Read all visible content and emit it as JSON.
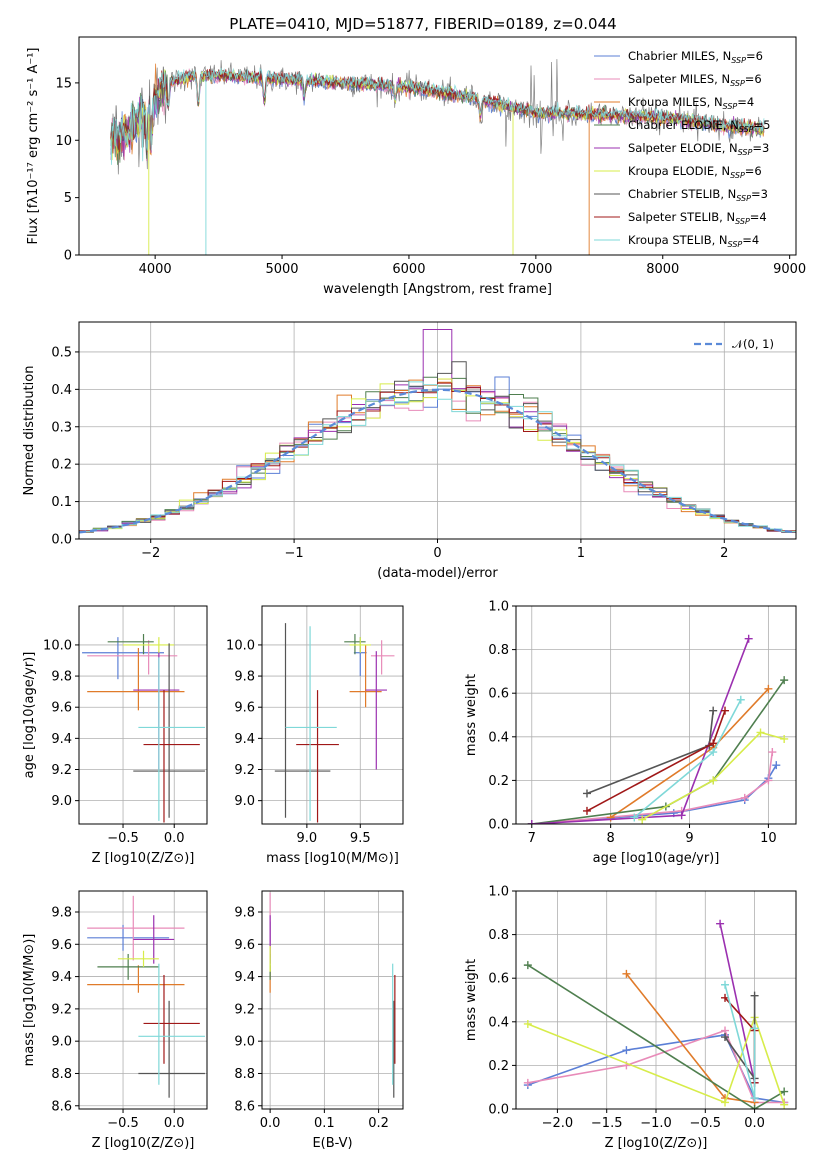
{
  "title": "PLATE=0410, MJD=51877, FIBERID=0189, z=0.044",
  "colors": {
    "Chabrier MILES": "#5b7fd6",
    "Salpeter MILES": "#e88bb9",
    "Kroupa MILES": "#e07b2a",
    "Chabrier ELODIE": "#4f7f4f",
    "Salpeter ELODIE": "#9b30b0",
    "Kroupa ELODIE": "#d7ec4a",
    "Chabrier STELIB": "#555555",
    "Salpeter STELIB": "#a01818",
    "Kroupa STELIB": "#7fd8d8",
    "data": "#808080",
    "normal": "#5b8ad8",
    "grid": "#b0b0b0"
  },
  "chart_data": [
    {
      "id": "spectrum",
      "type": "line",
      "xlabel": "wavelength [Angstrom, rest frame]",
      "ylabel": "Flux [f$_\\lambda$10$^{-17}$ erg cm$^{-2}$ s$^{-1}$ A$^{-1}$]",
      "ylabel_display": "Flux [fλ10⁻¹⁷ erg cm⁻² s⁻¹ A⁻¹]",
      "xlim": [
        3400,
        9050
      ],
      "ylim": [
        0,
        19
      ],
      "xticks": [
        4000,
        5000,
        6000,
        7000,
        8000,
        9000
      ],
      "yticks": [
        0,
        5,
        10,
        15
      ],
      "grid": false,
      "legend": "top-right",
      "legend_entries": [
        {
          "label": "Chabrier MILES, N",
          "sub": "SSP",
          "n": "=6"
        },
        {
          "label": "Salpeter MILES, N",
          "sub": "SSP",
          "n": "=6"
        },
        {
          "label": "Kroupa MILES, N",
          "sub": "SSP",
          "n": "=4"
        },
        {
          "label": "Chabrier ELODIE, N",
          "sub": "SSP",
          "n": "=5"
        },
        {
          "label": "Salpeter ELODIE, N",
          "sub": "SSP",
          "n": "=3"
        },
        {
          "label": "Kroupa ELODIE, N",
          "sub": "SSP",
          "n": "=6"
        },
        {
          "label": "Chabrier STELIB, N",
          "sub": "SSP",
          "n": "=3"
        },
        {
          "label": "Salpeter STELIB, N",
          "sub": "SSP",
          "n": "=4"
        },
        {
          "label": "Kroupa STELIB, N",
          "sub": "SSP",
          "n": "=4"
        }
      ],
      "continuum": [
        [
          3650,
          10.0
        ],
        [
          3800,
          10.8
        ],
        [
          3950,
          13.0
        ],
        [
          4100,
          15.0
        ],
        [
          4300,
          15.6
        ],
        [
          4600,
          15.6
        ],
        [
          5000,
          15.3
        ],
        [
          5500,
          15.0
        ],
        [
          6000,
          14.6
        ],
        [
          6500,
          13.7
        ],
        [
          7000,
          12.4
        ],
        [
          7500,
          12.2
        ],
        [
          8000,
          12.0
        ],
        [
          8500,
          11.2
        ],
        [
          8800,
          11.0
        ]
      ]
    },
    {
      "id": "residuals",
      "type": "histogram",
      "xlabel": "(data-model)/error",
      "ylabel": "Normed distribution",
      "xlim": [
        -2.5,
        2.5
      ],
      "ylim": [
        0,
        0.58
      ],
      "xticks": [
        -2,
        -1,
        0,
        1,
        2
      ],
      "yticks": [
        0.0,
        0.1,
        0.2,
        0.3,
        0.4,
        0.5
      ],
      "grid": true,
      "legend": "top-right",
      "legend_label": "𝒩(0, 1)",
      "bin_width": 0.1
    },
    {
      "id": "age-vs-Z",
      "type": "errorbar",
      "xlabel": "Z [log10(Z/Z⊙)]",
      "ylabel": "age  [log10(age/yr)]",
      "xlim": [
        -0.93,
        0.32
      ],
      "ylim": [
        8.85,
        10.25
      ],
      "xticks": [
        -0.5,
        0.0
      ],
      "yticks": [
        9.0,
        9.2,
        9.4,
        9.6,
        9.8,
        10.0
      ],
      "grid": true,
      "points": [
        {
          "model": "Chabrier MILES",
          "x": -0.55,
          "xerr": [
            0.35,
            0.45
          ],
          "y": 9.95,
          "yerr": [
            0.17,
            0.1
          ]
        },
        {
          "model": "Salpeter MILES",
          "x": -0.25,
          "xerr": [
            0.6,
            0.28
          ],
          "y": 9.93,
          "yerr": [
            0.12,
            0.1
          ]
        },
        {
          "model": "Kroupa MILES",
          "x": -0.35,
          "xerr": [
            0.5,
            0.45
          ],
          "y": 9.7,
          "yerr": [
            0.12,
            0.28
          ]
        },
        {
          "model": "Chabrier ELODIE",
          "x": -0.3,
          "xerr": [
            0.35,
            0.1
          ],
          "y": 10.02,
          "yerr": [
            0.08,
            0.05
          ]
        },
        {
          "model": "Salpeter ELODIE",
          "x": -0.15,
          "xerr": [
            0.25,
            0.2
          ],
          "y": 9.71,
          "yerr": [
            0.51,
            0.25
          ]
        },
        {
          "model": "Kroupa ELODIE",
          "x": -0.15,
          "xerr": [
            0.35,
            0.15
          ],
          "y": 10.0,
          "yerr": [
            0.05,
            0.05
          ]
        },
        {
          "model": "Chabrier STELIB",
          "x": -0.05,
          "xerr": [
            0.35,
            0.35
          ],
          "y": 9.19,
          "yerr": [
            0.3,
            0.82
          ]
        },
        {
          "model": "Salpeter STELIB",
          "x": -0.1,
          "xerr": [
            0.2,
            0.35
          ],
          "y": 9.36,
          "yerr": [
            0.5,
            0.35
          ]
        },
        {
          "model": "Kroupa STELIB",
          "x": -0.15,
          "xerr": [
            0.2,
            0.45
          ],
          "y": 9.47,
          "yerr": [
            0.6,
            0.45
          ]
        }
      ]
    },
    {
      "id": "age-vs-mass",
      "type": "errorbar",
      "xlabel": "mass [log10(M/M⊙)]",
      "ylabel": "",
      "xlim": [
        8.58,
        9.9
      ],
      "ylim": [
        8.85,
        10.25
      ],
      "xticks": [
        9.0,
        9.5
      ],
      "yticks": [
        9.0,
        9.2,
        9.4,
        9.6,
        9.8,
        10.0
      ],
      "grid": true,
      "points": [
        {
          "model": "Chabrier MILES",
          "x": 9.5,
          "xerr": [
            0.06,
            0.06
          ],
          "y": 9.95,
          "yerr": [
            0.15,
            0.1
          ]
        },
        {
          "model": "Salpeter MILES",
          "x": 9.7,
          "xerr": [
            0.1,
            0.12
          ],
          "y": 9.93,
          "yerr": [
            0.12,
            0.1
          ]
        },
        {
          "model": "Kroupa MILES",
          "x": 9.55,
          "xerr": [
            0.15,
            0.15
          ],
          "y": 9.7,
          "yerr": [
            0.1,
            0.3
          ]
        },
        {
          "model": "Chabrier ELODIE",
          "x": 9.45,
          "xerr": [
            0.1,
            0.1
          ],
          "y": 10.02,
          "yerr": [
            0.08,
            0.05
          ]
        },
        {
          "model": "Salpeter ELODIE",
          "x": 9.65,
          "xerr": [
            0.1,
            0.1
          ],
          "y": 9.71,
          "yerr": [
            0.51,
            0.25
          ]
        },
        {
          "model": "Kroupa ELODIE",
          "x": 9.5,
          "xerr": [
            0.1,
            0.1
          ],
          "y": 10.0,
          "yerr": [
            0.05,
            0.05
          ]
        },
        {
          "model": "Chabrier STELIB",
          "x": 8.8,
          "xerr": [
            0.1,
            0.42
          ],
          "y": 9.19,
          "yerr": [
            0.3,
            0.95
          ]
        },
        {
          "model": "Salpeter STELIB",
          "x": 9.1,
          "xerr": [
            0.2,
            0.2
          ],
          "y": 9.36,
          "yerr": [
            0.5,
            0.35
          ]
        },
        {
          "model": "Kroupa STELIB",
          "x": 9.03,
          "xerr": [
            0.23,
            0.25
          ],
          "y": 9.47,
          "yerr": [
            0.6,
            0.65
          ]
        }
      ]
    },
    {
      "id": "weight-vs-age",
      "type": "line",
      "xlabel": "age  [log10(age/yr)]",
      "ylabel": "mass weight",
      "xlim": [
        6.8,
        10.35
      ],
      "ylim": [
        0.0,
        1.0
      ],
      "xticks": [
        7,
        8,
        9,
        10
      ],
      "yticks": [
        0.0,
        0.2,
        0.4,
        0.6,
        0.8,
        1.0
      ],
      "grid": true,
      "series": [
        {
          "model": "Chabrier MILES",
          "x": [
            7.0,
            8.8,
            9.7,
            10.0,
            10.1
          ],
          "y": [
            0.0,
            0.05,
            0.11,
            0.21,
            0.27
          ]
        },
        {
          "model": "Salpeter MILES",
          "x": [
            7.0,
            8.9,
            9.7,
            10.0,
            10.05
          ],
          "y": [
            0.0,
            0.06,
            0.12,
            0.2,
            0.33
          ]
        },
        {
          "model": "Kroupa MILES",
          "x": [
            8.0,
            9.3,
            10.0
          ],
          "y": [
            0.03,
            0.35,
            0.62
          ]
        },
        {
          "model": "Chabrier ELODIE",
          "x": [
            7.0,
            8.7,
            9.3,
            10.2
          ],
          "y": [
            0.0,
            0.08,
            0.2,
            0.66
          ]
        },
        {
          "model": "Salpeter ELODIE",
          "x": [
            7.0,
            8.9,
            9.75
          ],
          "y": [
            0.0,
            0.04,
            0.85
          ]
        },
        {
          "model": "Kroupa ELODIE",
          "x": [
            8.4,
            9.3,
            9.9,
            10.2
          ],
          "y": [
            0.02,
            0.2,
            0.42,
            0.39
          ]
        },
        {
          "model": "Chabrier STELIB",
          "x": [
            7.7,
            9.25,
            9.3
          ],
          "y": [
            0.14,
            0.36,
            0.52
          ]
        },
        {
          "model": "Salpeter STELIB",
          "x": [
            7.7,
            9.3,
            9.45
          ],
          "y": [
            0.06,
            0.37,
            0.52
          ]
        },
        {
          "model": "Kroupa STELIB",
          "x": [
            8.3,
            9.3,
            9.65
          ],
          "y": [
            0.03,
            0.33,
            0.57
          ]
        }
      ]
    },
    {
      "id": "mass-vs-Z",
      "type": "errorbar",
      "xlabel": "Z [log10(Z/Z⊙)]",
      "ylabel": "mass [log10(M/M⊙)]",
      "xlim": [
        -0.93,
        0.32
      ],
      "ylim": [
        8.58,
        9.93
      ],
      "xticks": [
        -0.5,
        0.0
      ],
      "yticks": [
        8.6,
        8.8,
        9.0,
        9.2,
        9.4,
        9.6,
        9.8
      ],
      "grid": true,
      "points": [
        {
          "model": "Chabrier MILES",
          "x": -0.5,
          "xerr": [
            0.35,
            0.45
          ],
          "y": 9.64,
          "yerr": [
            0.08,
            0.08
          ]
        },
        {
          "model": "Salpeter MILES",
          "x": -0.4,
          "xerr": [
            0.45,
            0.5
          ],
          "y": 9.7,
          "yerr": [
            0.2,
            0.2
          ]
        },
        {
          "model": "Kroupa MILES",
          "x": -0.35,
          "xerr": [
            0.5,
            0.45
          ],
          "y": 9.35,
          "yerr": [
            0.05,
            0.12
          ]
        },
        {
          "model": "Chabrier ELODIE",
          "x": -0.45,
          "xerr": [
            0.3,
            0.3
          ],
          "y": 9.46,
          "yerr": [
            0.08,
            0.08
          ]
        },
        {
          "model": "Salpeter ELODIE",
          "x": -0.2,
          "xerr": [
            0.2,
            0.2
          ],
          "y": 9.63,
          "yerr": [
            0.15,
            0.15
          ]
        },
        {
          "model": "Kroupa ELODIE",
          "x": -0.3,
          "xerr": [
            0.25,
            0.15
          ],
          "y": 9.51,
          "yerr": [
            0.05,
            0.05
          ]
        },
        {
          "model": "Chabrier STELIB",
          "x": -0.05,
          "xerr": [
            0.3,
            0.35
          ],
          "y": 8.8,
          "yerr": [
            0.15,
            0.45
          ]
        },
        {
          "model": "Salpeter STELIB",
          "x": -0.1,
          "xerr": [
            0.2,
            0.35
          ],
          "y": 9.11,
          "yerr": [
            0.25,
            0.3
          ]
        },
        {
          "model": "Kroupa STELIB",
          "x": -0.15,
          "xerr": [
            0.2,
            0.45
          ],
          "y": 9.03,
          "yerr": [
            0.3,
            0.45
          ]
        }
      ]
    },
    {
      "id": "mass-vs-ebv",
      "type": "errorbar",
      "xlabel": "E(B-V)",
      "ylabel": "",
      "xlim": [
        -0.015,
        0.245
      ],
      "ylim": [
        8.58,
        9.93
      ],
      "xticks": [
        0.0,
        0.1,
        0.2
      ],
      "yticks": [
        8.6,
        8.8,
        9.0,
        9.2,
        9.4,
        9.6,
        9.8
      ],
      "grid": true,
      "points": [
        {
          "model": "Chabrier MILES",
          "x": 0.0,
          "y": 9.64,
          "yerr": [
            0.1,
            0.1
          ]
        },
        {
          "model": "Salpeter MILES",
          "x": 0.0,
          "y": 9.72,
          "yerr": [
            0.2,
            0.2
          ]
        },
        {
          "model": "Kroupa MILES",
          "x": 0.0,
          "y": 9.35,
          "yerr": [
            0.05,
            0.12
          ]
        },
        {
          "model": "Chabrier ELODIE",
          "x": 0.0,
          "y": 9.46,
          "yerr": [
            0.08,
            0.08
          ]
        },
        {
          "model": "Salpeter ELODIE",
          "x": 0.0,
          "y": 9.63,
          "yerr": [
            0.15,
            0.15
          ]
        },
        {
          "model": "Kroupa ELODIE",
          "x": 0.0,
          "y": 9.51,
          "yerr": [
            0.08,
            0.08
          ]
        },
        {
          "model": "Chabrier STELIB",
          "x": 0.228,
          "y": 8.8,
          "yerr": [
            0.15,
            0.45
          ]
        },
        {
          "model": "Salpeter STELIB",
          "x": 0.23,
          "y": 9.11,
          "yerr": [
            0.25,
            0.3
          ]
        },
        {
          "model": "Kroupa STELIB",
          "x": 0.226,
          "y": 9.03,
          "yerr": [
            0.3,
            0.45
          ]
        }
      ]
    },
    {
      "id": "weight-vs-Z",
      "type": "line",
      "xlabel": "Z [log10(Z/Z⊙)]",
      "ylabel": "mass weight",
      "xlim": [
        -2.42,
        0.42
      ],
      "ylim": [
        0.0,
        1.0
      ],
      "xticks": [
        -2.0,
        -1.5,
        -1.0,
        -0.5,
        0.0
      ],
      "yticks": [
        0.0,
        0.2,
        0.4,
        0.6,
        0.8,
        1.0
      ],
      "grid": true,
      "series": [
        {
          "model": "Chabrier MILES",
          "x": [
            -2.3,
            -1.3,
            -0.3,
            0.0,
            0.3
          ],
          "y": [
            0.11,
            0.27,
            0.34,
            0.05,
            0.03
          ]
        },
        {
          "model": "Salpeter MILES",
          "x": [
            -2.3,
            -1.3,
            -0.3,
            0.0,
            0.3
          ],
          "y": [
            0.12,
            0.2,
            0.36,
            0.03,
            0.03
          ]
        },
        {
          "model": "Kroupa MILES",
          "x": [
            -1.3,
            -0.3,
            0.0
          ],
          "y": [
            0.62,
            0.05,
            0.03
          ]
        },
        {
          "model": "Chabrier ELODIE",
          "x": [
            -2.3,
            0.0,
            0.3
          ],
          "y": [
            0.66,
            0.0,
            0.08
          ]
        },
        {
          "model": "Salpeter ELODIE",
          "x": [
            -0.35,
            0.0
          ],
          "y": [
            0.85,
            0.12
          ]
        },
        {
          "model": "Kroupa ELODIE",
          "x": [
            -2.3,
            -0.3,
            0.0,
            0.3
          ],
          "y": [
            0.39,
            0.03,
            0.42,
            0.02
          ]
        },
        {
          "model": "Chabrier STELIB",
          "x": [
            -0.3,
            0.0,
            0.0
          ],
          "y": [
            0.33,
            0.14,
            0.52
          ]
        },
        {
          "model": "Salpeter STELIB",
          "x": [
            -0.3,
            0.0,
            0.0
          ],
          "y": [
            0.51,
            0.36,
            0.12
          ]
        },
        {
          "model": "Kroupa STELIB",
          "x": [
            -0.3,
            0.0,
            0.0
          ],
          "y": [
            0.57,
            0.05,
            0.37
          ]
        }
      ]
    }
  ]
}
